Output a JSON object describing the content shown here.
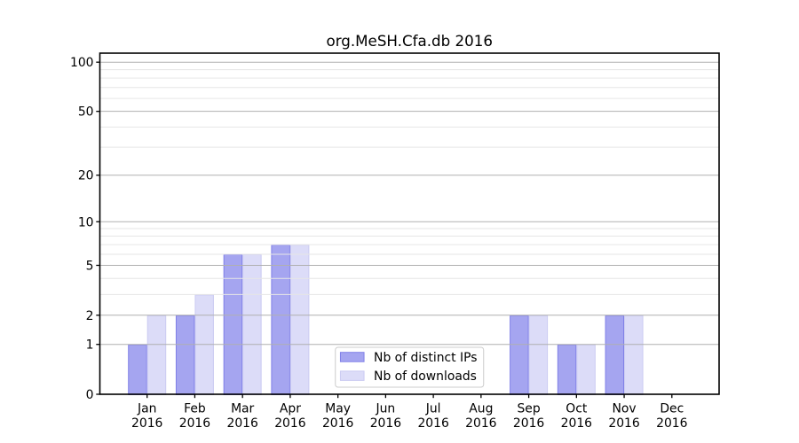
{
  "figure": {
    "background": "#ffffff"
  },
  "chart_data": {
    "type": "bar",
    "title": "org.MeSH.Cfa.db 2016",
    "categories": [
      "Jan",
      "Feb",
      "Mar",
      "Apr",
      "May",
      "Jun",
      "Jul",
      "Aug",
      "Sep",
      "Oct",
      "Nov",
      "Dec"
    ],
    "category_year": "2016",
    "series": [
      {
        "name": "Nb of distinct IPs",
        "values": [
          1,
          2,
          6,
          7,
          0,
          0,
          0,
          0,
          2,
          1,
          2,
          0
        ],
        "fill": "#a5a5f0",
        "edge": "#8080e8"
      },
      {
        "name": "Nb of downloads",
        "values": [
          2,
          3,
          6,
          7,
          0,
          0,
          0,
          0,
          2,
          1,
          2,
          0
        ],
        "fill": "#dcdcf8",
        "edge": "#cbcbf2"
      }
    ],
    "xlabel": "",
    "ylabel": "",
    "yscale": "log1p",
    "yticks_major": [
      0,
      1,
      2,
      5,
      10,
      20,
      50,
      100
    ],
    "yticks_minor": [
      3,
      4,
      6,
      7,
      8,
      9,
      30,
      40,
      60,
      70,
      80,
      90
    ],
    "ylim": [
      0,
      113.5
    ],
    "xlim": [
      -0.99,
      11.99
    ],
    "bar_half_width": 0.4,
    "grid": {
      "show": true,
      "major_color": "#b0b0b0",
      "minor_color": "#e6e6e6"
    },
    "legend": {
      "position": "lower center",
      "entries": [
        "Nb of distinct IPs",
        "Nb of downloads"
      ],
      "border_color": "#cccccc",
      "background": "#ffffff"
    },
    "axis_color": "#000000",
    "text_color": "#000000"
  }
}
